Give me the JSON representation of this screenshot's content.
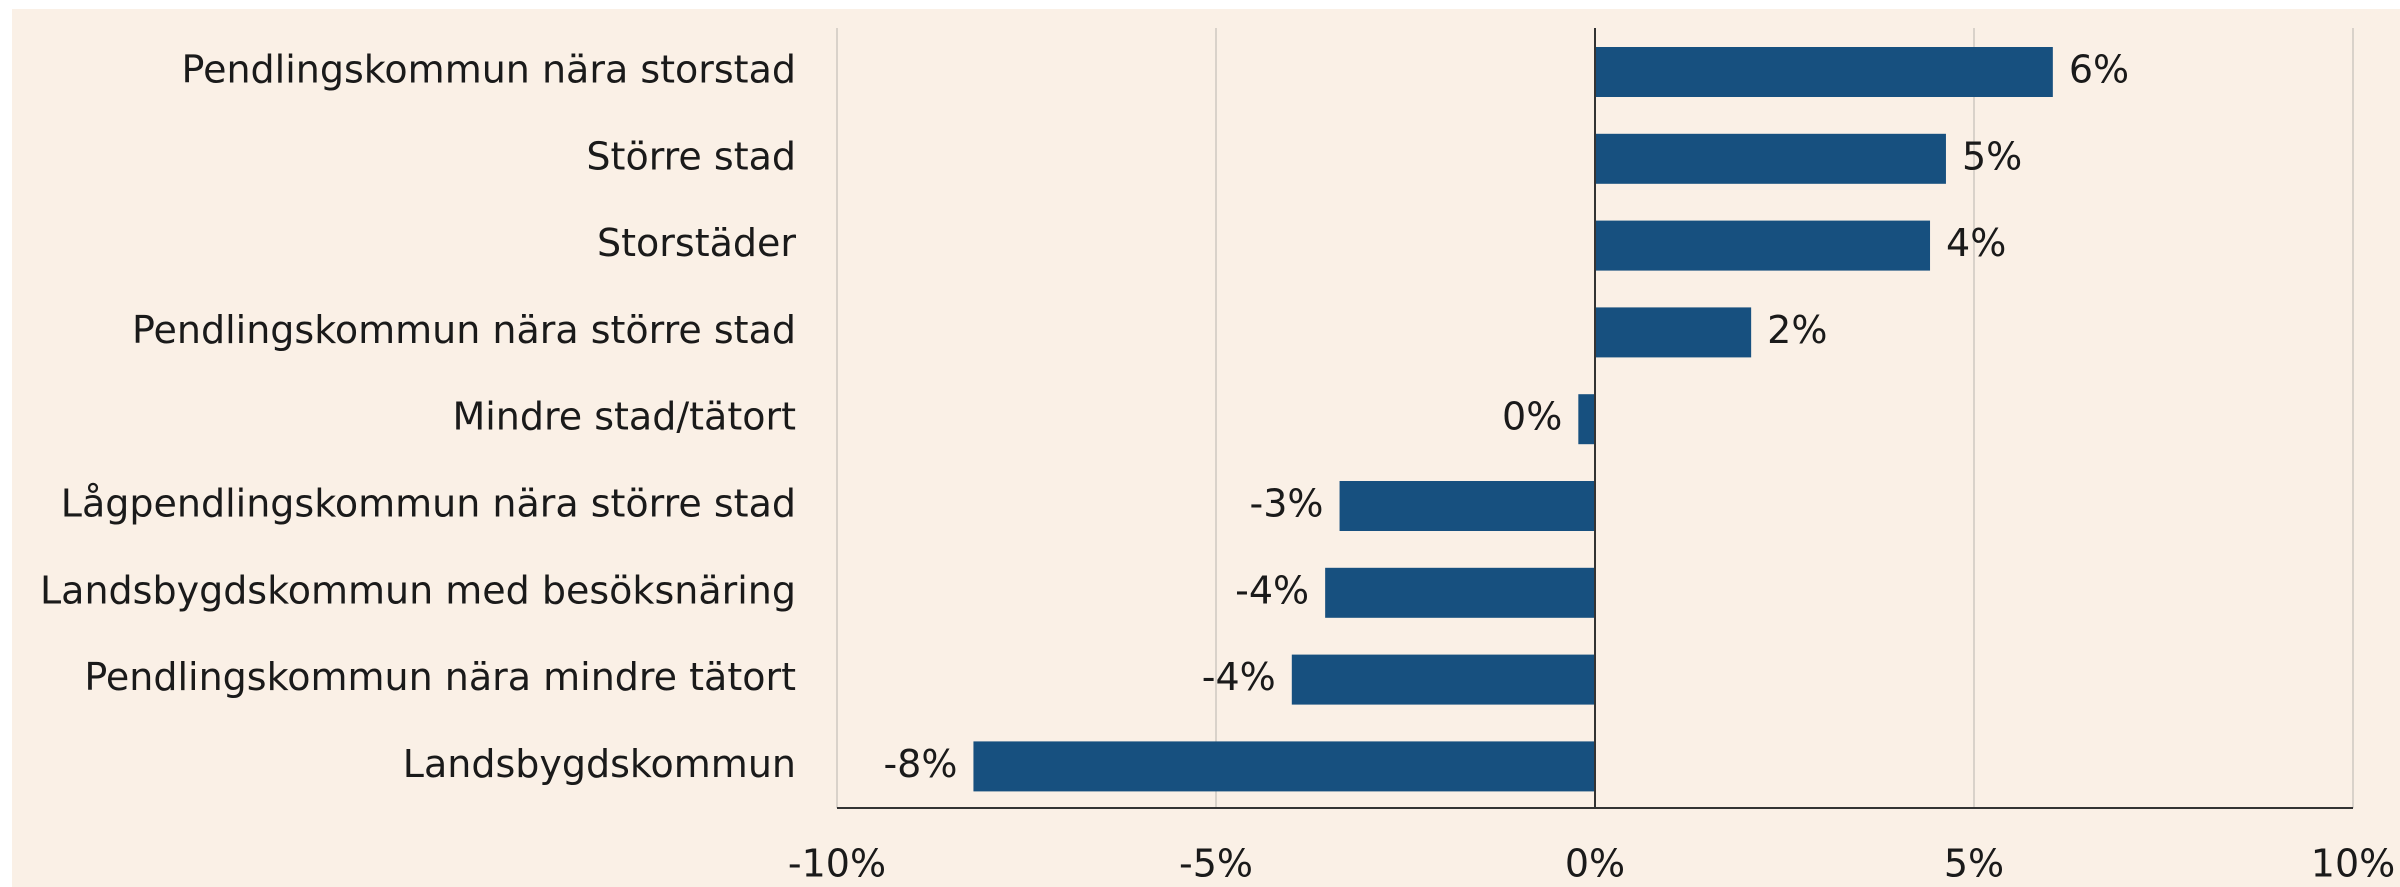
{
  "chart_data": {
    "type": "barh",
    "categories": [
      "Pendlingskommun nära storstad",
      "Större stad",
      "Storstäder",
      "Pendlingskommun nära större stad",
      "Mindre stad/tätort",
      "Lågpendlingskommun nära större stad",
      "Landsbygdskommun med besöksnäring",
      "Pendlingskommun nära mindre tätort",
      "Landsbygdskommun"
    ],
    "values": [
      6.04,
      4.63,
      4.42,
      2.06,
      -0.22,
      -3.37,
      -3.56,
      -4.0,
      -8.2
    ],
    "value_labels": [
      "6%",
      "5%",
      "4%",
      "2%",
      "0%",
      "-3%",
      "-4%",
      "-4%",
      "-8%"
    ],
    "color": "#17507f",
    "xlim": [
      -10,
      10
    ],
    "xticks": [
      {
        "value": -10,
        "label": "-10%"
      },
      {
        "value": -5,
        "label": "-5%"
      },
      {
        "value": 0,
        "label": "0%"
      },
      {
        "value": 5,
        "label": "5%"
      },
      {
        "value": 10,
        "label": "10%"
      }
    ],
    "grid": true
  }
}
